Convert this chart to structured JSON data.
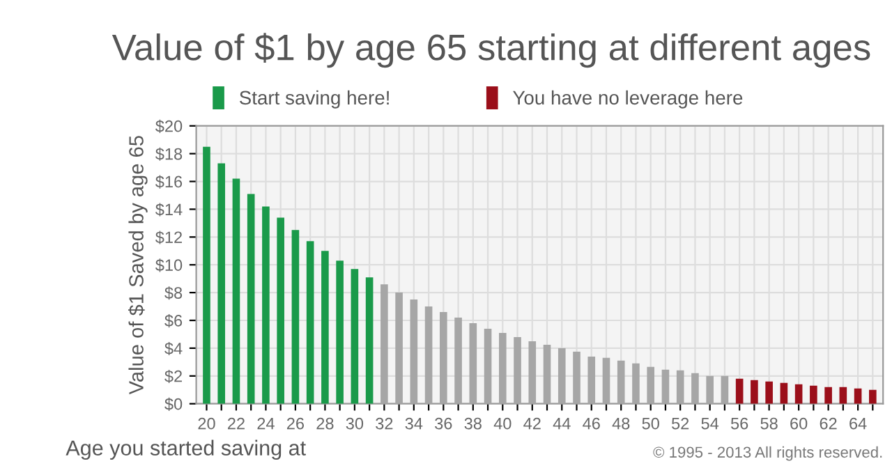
{
  "chart_data": {
    "type": "bar",
    "title": "Value of $1 by age 65 starting at different ages",
    "xlabel": "Age you started saving at",
    "ylabel": "Value of $1 Saved by age 65",
    "categories": [
      "20",
      null,
      "22",
      null,
      "24",
      null,
      "26",
      null,
      "28",
      null,
      "30",
      null,
      "32",
      null,
      "34",
      null,
      "36",
      null,
      "38",
      null,
      "40",
      null,
      "42",
      null,
      "44",
      null,
      "46",
      null,
      "48",
      null,
      "50",
      null,
      "52",
      null,
      "54",
      null,
      "56",
      null,
      "58",
      null,
      "60",
      null,
      "62",
      null,
      "64",
      null
    ],
    "series": [
      {
        "name": "Start saving here!",
        "color": "#1a9a4a",
        "values": [
          18.5,
          17.3,
          16.2,
          15.1,
          14.2,
          13.4,
          12.5,
          11.7,
          11.0,
          10.3,
          9.7,
          9.1,
          null,
          null,
          null,
          null,
          null,
          null,
          null,
          null,
          null,
          null,
          null,
          null,
          null,
          null,
          null,
          null,
          null,
          null,
          null,
          null,
          null,
          null,
          null,
          null,
          null,
          null,
          null,
          null,
          null,
          null,
          null,
          null,
          null,
          null
        ]
      },
      {
        "color": "#a6a6a6",
        "values": [
          null,
          null,
          null,
          null,
          null,
          null,
          null,
          null,
          null,
          null,
          null,
          null,
          8.6,
          8.0,
          7.5,
          7.0,
          6.6,
          6.2,
          5.8,
          5.4,
          5.1,
          4.8,
          4.5,
          4.25,
          4.0,
          3.75,
          3.4,
          3.3,
          3.1,
          2.9,
          2.65,
          2.45,
          2.4,
          2.2,
          2.0,
          2.0,
          null,
          null,
          null,
          null,
          null,
          null,
          null,
          null,
          null,
          null
        ]
      },
      {
        "name": "You have no leverage here",
        "color": "#9b0f1a",
        "values": [
          null,
          null,
          null,
          null,
          null,
          null,
          null,
          null,
          null,
          null,
          null,
          null,
          null,
          null,
          null,
          null,
          null,
          null,
          null,
          null,
          null,
          null,
          null,
          null,
          null,
          null,
          null,
          null,
          null,
          null,
          null,
          null,
          null,
          null,
          null,
          null,
          1.8,
          1.7,
          1.6,
          1.5,
          1.4,
          1.3,
          1.2,
          1.2,
          1.1,
          1.0
        ]
      }
    ],
    "ylim": [
      0,
      20
    ],
    "yticks": [
      {
        "value": 0,
        "label": "$0"
      },
      {
        "value": 2,
        "label": "$2"
      },
      {
        "value": 4,
        "label": "$4"
      },
      {
        "value": 6,
        "label": "$6"
      },
      {
        "value": 8,
        "label": "$8"
      },
      {
        "value": 10,
        "label": "$10"
      },
      {
        "value": 12,
        "label": "$12"
      },
      {
        "value": 14,
        "label": "$14"
      },
      {
        "value": 16,
        "label": "$16"
      },
      {
        "value": 18,
        "label": "$18"
      },
      {
        "value": 20,
        "label": "$20"
      }
    ],
    "grid": true,
    "legend": "top left",
    "annotations": [
      "© 1995 - 2013 All rights reserved."
    ]
  }
}
